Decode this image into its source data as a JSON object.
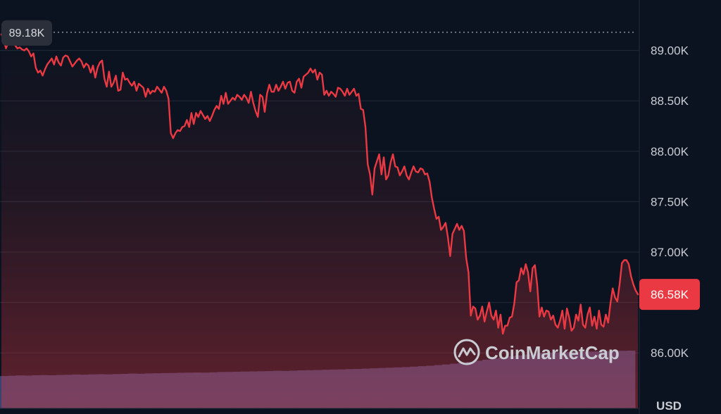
{
  "chart_data": {
    "type": "line",
    "title": "",
    "xlabel": "",
    "ylabel": "",
    "currency_label": "USD",
    "watermark": "CoinMarketCap",
    "y_ticks": [
      "89.00K",
      "88.50K",
      "88.00K",
      "87.50K",
      "87.00K",
      "86.00K"
    ],
    "y_tick_values": [
      89000,
      88500,
      88000,
      87500,
      87000,
      86000
    ],
    "ylim": [
      85450,
      89500
    ],
    "grid": true,
    "high_label": "89.18K",
    "high_value": 89180,
    "current_label": "86.58K",
    "current_value": 86580,
    "colors": {
      "line": "#ea3943",
      "background": "#0c1320",
      "grid": "#222b39",
      "volume": "#3a4470",
      "current_badge": "#ea3943",
      "high_badge": "#2a2f3a"
    },
    "series": [
      {
        "values": [
          89160,
          89110,
          89020,
          89080,
          89060,
          89110,
          89050,
          89020,
          89030,
          89010,
          89000,
          89020,
          88990,
          88940,
          88970,
          88830,
          88780,
          88800,
          88750,
          88810,
          88860,
          88890,
          88920,
          88860,
          88940,
          88880,
          88850,
          88930,
          88950,
          88940,
          88890,
          88840,
          88870,
          88900,
          88920,
          88890,
          88830,
          88870,
          88850,
          88780,
          88850,
          88730,
          88830,
          88880,
          88900,
          88720,
          88640,
          88790,
          88640,
          88680,
          88750,
          88600,
          88610,
          88780,
          88710,
          88720,
          88680,
          88650,
          88690,
          88600,
          88670,
          88650,
          88630,
          88540,
          88620,
          88570,
          88600,
          88590,
          88640,
          88610,
          88580,
          88640,
          88600,
          88520,
          88180,
          88130,
          88180,
          88210,
          88200,
          88240,
          88250,
          88310,
          88240,
          88380,
          88270,
          88380,
          88340,
          88400,
          88360,
          88320,
          88350,
          88300,
          88350,
          88410,
          88450,
          88420,
          88550,
          88470,
          88580,
          88470,
          88500,
          88530,
          88510,
          88560,
          88540,
          88510,
          88560,
          88530,
          88480,
          88590,
          88480,
          88400,
          88340,
          88560,
          88540,
          88390,
          88570,
          88660,
          88590,
          88590,
          88660,
          88600,
          88640,
          88690,
          88620,
          88680,
          88690,
          88600,
          88580,
          88690,
          88720,
          88630,
          88740,
          88760,
          88780,
          88820,
          88780,
          88810,
          88710,
          88780,
          88760,
          88560,
          88600,
          88550,
          88590,
          88570,
          88540,
          88630,
          88620,
          88590,
          88550,
          88620,
          88560,
          88590,
          88620,
          88550,
          88570,
          88420,
          88410,
          88240,
          87870,
          87770,
          87570,
          87830,
          87900,
          87970,
          87770,
          87940,
          87720,
          87760,
          87890,
          87970,
          87850,
          87840,
          87760,
          87800,
          87850,
          87760,
          87720,
          87790,
          87850,
          87800,
          87790,
          87830,
          87820,
          87770,
          87780,
          87700,
          87540,
          87430,
          87330,
          87350,
          87220,
          87250,
          87290,
          87150,
          86960,
          87180,
          87230,
          87280,
          87220,
          87260,
          87210,
          86940,
          86800,
          86370,
          86460,
          86440,
          86330,
          86370,
          86460,
          86310,
          86410,
          86500,
          86370,
          86330,
          86420,
          86250,
          86380,
          86190,
          86270,
          86270,
          86350,
          86360,
          86490,
          86700,
          86720,
          86840,
          86780,
          86880,
          86800,
          86610,
          86840,
          86870,
          86680,
          86360,
          86450,
          86360,
          86420,
          86410,
          86330,
          86370,
          86280,
          86250,
          86320,
          86420,
          86240,
          86440,
          86350,
          86220,
          86250,
          86380,
          86320,
          86480,
          86280,
          86250,
          86380,
          86450,
          86270,
          86360,
          86240,
          86420,
          86280,
          86260,
          86380,
          86300,
          86490,
          86640,
          86550,
          86510,
          86680,
          86890,
          86920,
          86920,
          86880,
          86760,
          86680,
          86620,
          86580
        ]
      }
    ],
    "volume_values": [
      210,
      212,
      214,
      213,
      215,
      216,
      215,
      217,
      218,
      220,
      219,
      221,
      222,
      221,
      223,
      224,
      226,
      225,
      227,
      228,
      229,
      230,
      231,
      232,
      233,
      232,
      234,
      236,
      237,
      238,
      239,
      240,
      241,
      242,
      244,
      243,
      245,
      247,
      248,
      249,
      251,
      252,
      253,
      255,
      256,
      258,
      260,
      262,
      264,
      266,
      268,
      271,
      274,
      277,
      281,
      285,
      290,
      296,
      302,
      309,
      316,
      324,
      331,
      338,
      344,
      350,
      355,
      359,
      362,
      364,
      365,
      367,
      368,
      369,
      370,
      372,
      373,
      374,
      375
    ]
  }
}
